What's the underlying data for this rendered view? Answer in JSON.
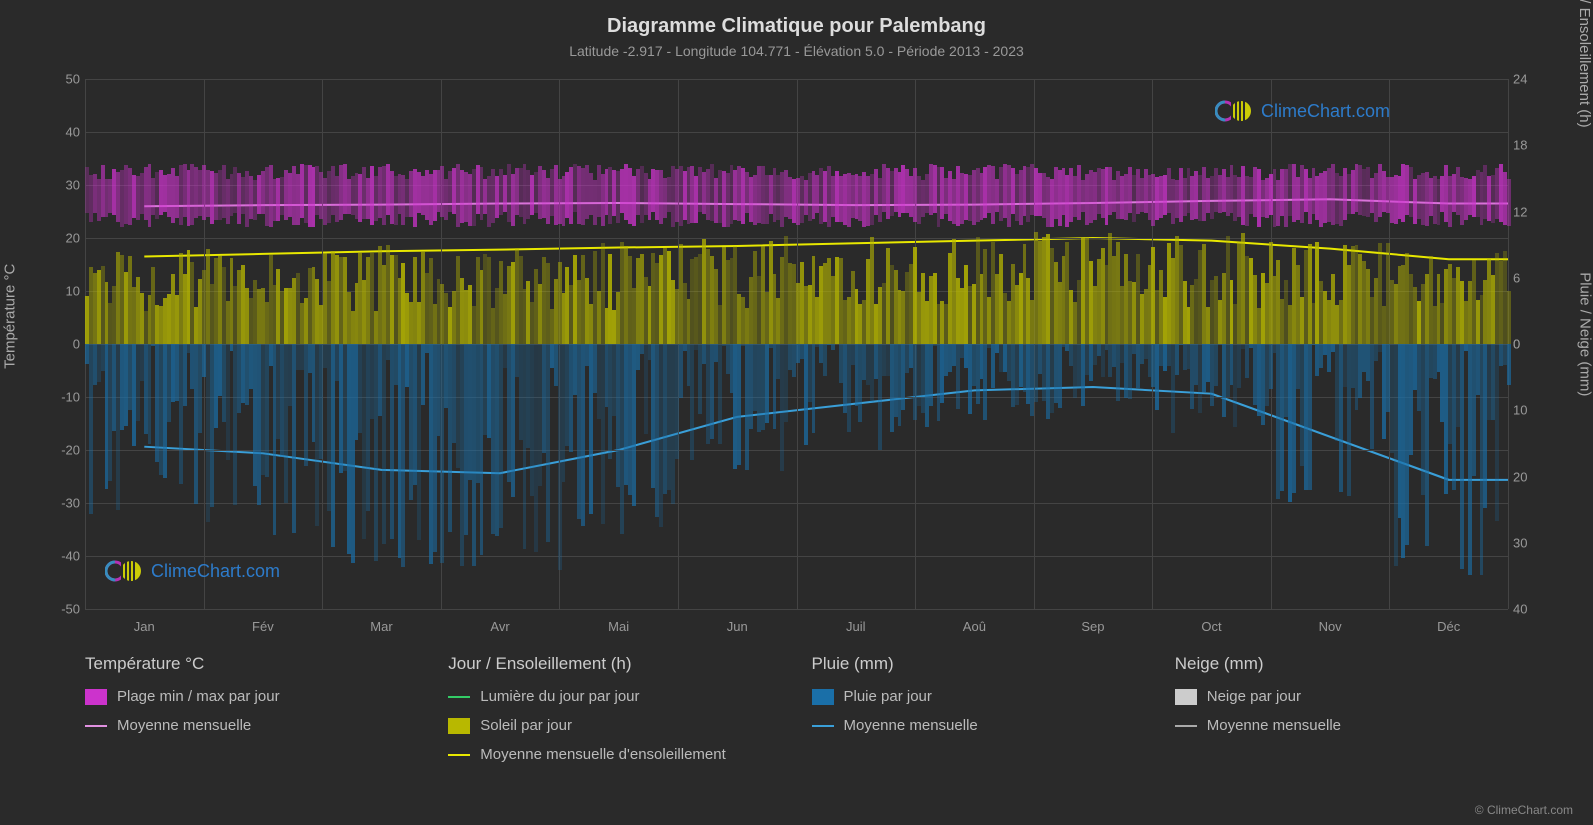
{
  "title": "Diagramme Climatique pour Palembang",
  "subtitle": "Latitude -2.917 - Longitude 104.771 - Élévation 5.0 - Période 2013 - 2023",
  "watermark_text": "ClimeChart.com",
  "copyright": "© ClimeChart.com",
  "axes": {
    "left_title": "Température °C",
    "right_title_top": "Jour / Ensoleillement (h)",
    "right_title_bottom": "Pluie / Neige (mm)",
    "y_left": {
      "min": -50,
      "max": 50,
      "step": 10,
      "ticks": [
        -50,
        -40,
        -30,
        -20,
        -10,
        0,
        10,
        20,
        30,
        40,
        50
      ]
    },
    "y_right_top": {
      "min": 0,
      "max": 24,
      "step": 6,
      "ticks": [
        0,
        6,
        12,
        18,
        24
      ]
    },
    "y_right_bottom": {
      "min": 0,
      "max": 40,
      "step": 10,
      "ticks": [
        0,
        10,
        20,
        30,
        40
      ]
    },
    "months": [
      "Jan",
      "Fév",
      "Mar",
      "Avr",
      "Mai",
      "Jun",
      "Juil",
      "Aoû",
      "Sep",
      "Oct",
      "Nov",
      "Déc"
    ]
  },
  "colors": {
    "background": "#2a2a2a",
    "grid": "#444444",
    "text": "#aaaaaa",
    "temp_range": "#cc33cc",
    "temp_mean": "#e090e0",
    "daylight": "#33cc66",
    "sunshine_bars": "#b8b800",
    "sunshine_mean": "#e8e800",
    "rain_bars": "#1a6fa8",
    "rain_mean": "#3a9fd8",
    "snow_bars": "#cccccc",
    "snow_mean": "#aaaaaa"
  },
  "series": {
    "temp_mean_monthly": [
      26.0,
      26.2,
      26.3,
      26.5,
      26.6,
      26.4,
      26.2,
      26.3,
      26.6,
      27.0,
      27.3,
      26.5
    ],
    "temp_min_band": 23,
    "temp_max_band": 32,
    "sunshine_mean_monthly": [
      16.5,
      17.0,
      17.5,
      17.8,
      18.2,
      18.5,
      19.0,
      19.5,
      20.0,
      19.5,
      18.0,
      16.0
    ],
    "rain_mean_monthly": [
      15.5,
      16.5,
      19.0,
      19.5,
      16.0,
      11.0,
      9.0,
      7.0,
      6.5,
      7.5,
      14.0,
      20.5
    ]
  },
  "legend": {
    "col1_title": "Température °C",
    "col1_items": [
      {
        "label": "Plage min / max par jour",
        "type": "swatch",
        "color": "#cc33cc"
      },
      {
        "label": "Moyenne mensuelle",
        "type": "line",
        "color": "#e090e0"
      }
    ],
    "col2_title": "Jour / Ensoleillement (h)",
    "col2_items": [
      {
        "label": "Lumière du jour par jour",
        "type": "line",
        "color": "#33cc66"
      },
      {
        "label": "Soleil par jour",
        "type": "swatch",
        "color": "#b8b800"
      },
      {
        "label": "Moyenne mensuelle d'ensoleillement",
        "type": "line",
        "color": "#e8e800"
      }
    ],
    "col3_title": "Pluie (mm)",
    "col3_items": [
      {
        "label": "Pluie par jour",
        "type": "swatch",
        "color": "#1a6fa8"
      },
      {
        "label": "Moyenne mensuelle",
        "type": "line",
        "color": "#3a9fd8"
      }
    ],
    "col4_title": "Neige (mm)",
    "col4_items": [
      {
        "label": "Neige par jour",
        "type": "swatch",
        "color": "#cccccc"
      },
      {
        "label": "Moyenne mensuelle",
        "type": "line",
        "color": "#aaaaaa"
      }
    ]
  }
}
